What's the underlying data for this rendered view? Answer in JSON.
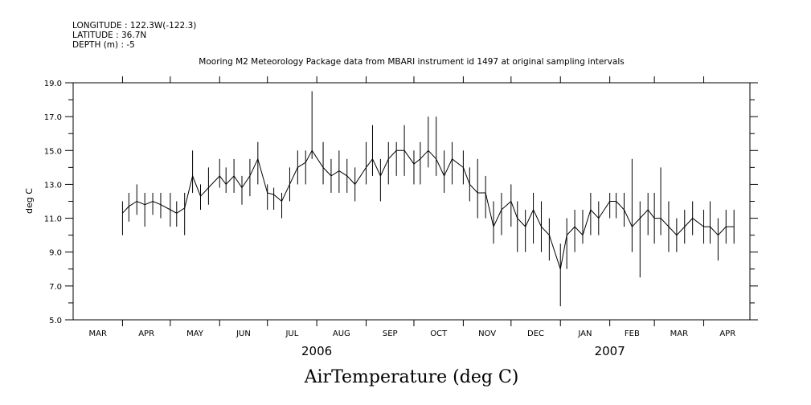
{
  "header": {
    "longitude": "LONGITUDE : 122.3W(-122.3)",
    "latitude": "LATITUDE : 36.7N",
    "depth": "DEPTH (m) : -5"
  },
  "chart_data": {
    "type": "line",
    "title": "Mooring M2 Meteorology Package data from MBARI instrument id 1497 at original sampling intervals",
    "xlabel": "AirTemperature (deg C)",
    "ylabel": "deg C",
    "ylim": [
      5.0,
      19.0
    ],
    "y_ticks": [
      "5.0",
      "7.0",
      "9.0",
      "11.0",
      "13.0",
      "15.0",
      "17.0",
      "19.0"
    ],
    "x_range": [
      "2006-03-01",
      "2007-04-30"
    ],
    "month_labels": [
      "MAR",
      "APR",
      "MAY",
      "JUN",
      "JUL",
      "AUG",
      "SEP",
      "OCT",
      "NOV",
      "DEC",
      "JAN",
      "FEB",
      "MAR",
      "APR"
    ],
    "year_labels": [
      "2006",
      "2007"
    ],
    "grid": false,
    "series": [
      {
        "x": [
          "2006-04-01",
          "2006-04-05",
          "2006-04-10",
          "2006-04-15",
          "2006-04-20",
          "2006-04-25",
          "2006-05-01",
          "2006-05-05",
          "2006-05-10",
          "2006-05-15",
          "2006-05-20",
          "2006-05-25",
          "2006-06-01",
          "2006-06-05",
          "2006-06-10",
          "2006-06-15",
          "2006-06-20",
          "2006-06-25",
          "2006-07-01",
          "2006-07-05",
          "2006-07-10",
          "2006-07-15",
          "2006-07-20",
          "2006-07-25",
          "2006-07-29",
          "2006-08-05",
          "2006-08-10",
          "2006-08-15",
          "2006-08-20",
          "2006-08-25",
          "2006-09-01",
          "2006-09-05",
          "2006-09-10",
          "2006-09-15",
          "2006-09-20",
          "2006-09-25",
          "2006-10-01",
          "2006-10-05",
          "2006-10-10",
          "2006-10-15",
          "2006-10-20",
          "2006-10-25",
          "2006-11-01",
          "2006-11-05",
          "2006-11-10",
          "2006-11-15",
          "2006-11-20",
          "2006-11-25",
          "2006-12-01",
          "2006-12-05",
          "2006-12-10",
          "2006-12-15",
          "2006-12-20",
          "2006-12-25",
          "2007-01-01",
          "2007-01-05",
          "2007-01-10",
          "2007-01-15",
          "2007-01-20",
          "2007-01-25",
          "2007-02-01",
          "2007-02-05",
          "2007-02-10",
          "2007-02-15",
          "2007-02-20",
          "2007-02-25",
          "2007-03-01",
          "2007-03-05",
          "2007-03-10",
          "2007-03-15",
          "2007-03-20",
          "2007-03-25",
          "2007-04-01",
          "2007-04-05",
          "2007-04-10",
          "2007-04-15",
          "2007-04-20"
        ],
        "y_mean": [
          11.3,
          11.7,
          12.0,
          11.8,
          12.0,
          11.8,
          11.5,
          11.3,
          11.6,
          13.5,
          12.3,
          12.8,
          13.5,
          13.0,
          13.5,
          12.8,
          13.5,
          14.5,
          12.5,
          12.4,
          12.0,
          13.0,
          14.0,
          14.3,
          15.0,
          14.0,
          13.5,
          13.8,
          13.5,
          13.0,
          14.0,
          14.5,
          13.5,
          14.5,
          15.0,
          15.0,
          14.2,
          14.5,
          15.0,
          14.5,
          13.5,
          14.5,
          14.0,
          13.0,
          12.5,
          12.5,
          10.5,
          11.5,
          12.0,
          11.0,
          10.5,
          11.5,
          10.5,
          10.0,
          8.0,
          10.0,
          10.5,
          10.0,
          11.5,
          11.0,
          12.0,
          12.0,
          11.5,
          10.5,
          11.0,
          11.5,
          11.0,
          11.0,
          10.5,
          10.0,
          10.5,
          11.0,
          10.5,
          10.5,
          10.0,
          10.5,
          10.5
        ],
        "y_max": [
          12.0,
          12.5,
          13.0,
          12.5,
          12.5,
          12.5,
          12.5,
          12.0,
          12.5,
          15.0,
          13.0,
          14.0,
          14.5,
          14.0,
          14.5,
          13.5,
          14.5,
          15.5,
          13.0,
          12.8,
          12.5,
          14.0,
          15.0,
          15.0,
          18.5,
          15.5,
          14.5,
          15.0,
          14.5,
          14.0,
          15.5,
          16.5,
          14.5,
          15.5,
          15.5,
          16.5,
          15.0,
          15.5,
          17.0,
          17.0,
          15.0,
          15.5,
          15.0,
          14.0,
          14.5,
          13.5,
          12.0,
          12.5,
          13.0,
          12.0,
          11.5,
          12.5,
          12.0,
          11.0,
          9.5,
          11.0,
          11.5,
          11.5,
          12.5,
          12.0,
          12.5,
          12.5,
          12.5,
          14.5,
          12.0,
          12.5,
          12.5,
          14.0,
          12.0,
          11.0,
          11.5,
          12.0,
          11.5,
          12.0,
          11.0,
          11.5,
          11.5
        ],
        "y_min": [
          10.0,
          10.8,
          11.2,
          10.5,
          11.2,
          11.0,
          10.5,
          10.5,
          10.0,
          12.5,
          11.5,
          11.8,
          12.8,
          12.5,
          12.5,
          11.8,
          12.3,
          13.0,
          11.5,
          11.5,
          11.0,
          12.0,
          13.0,
          13.0,
          14.5,
          13.0,
          12.5,
          12.5,
          12.5,
          12.0,
          13.0,
          13.5,
          12.0,
          13.0,
          13.5,
          13.5,
          13.0,
          13.0,
          14.0,
          13.5,
          12.5,
          13.0,
          13.0,
          12.0,
          11.0,
          11.0,
          9.5,
          10.0,
          10.5,
          9.0,
          9.0,
          9.5,
          9.0,
          8.5,
          5.8,
          8.0,
          9.0,
          9.5,
          10.0,
          10.0,
          11.0,
          11.0,
          10.5,
          9.0,
          7.5,
          10.0,
          9.5,
          10.0,
          9.0,
          9.0,
          9.5,
          10.0,
          9.5,
          9.5,
          8.5,
          9.5,
          9.5
        ]
      }
    ]
  }
}
